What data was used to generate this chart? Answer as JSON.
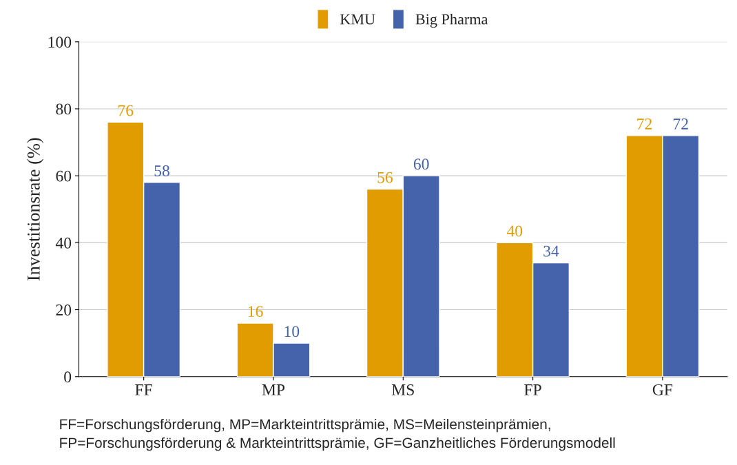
{
  "chart_data": {
    "type": "bar",
    "categories": [
      "FF",
      "MP",
      "MS",
      "FP",
      "GF"
    ],
    "series": [
      {
        "name": "KMU",
        "color": "#e09c00",
        "values": [
          76,
          16,
          56,
          40,
          72
        ]
      },
      {
        "name": "Big Pharma",
        "color": "#4463aa",
        "values": [
          58,
          10,
          60,
          34,
          72
        ]
      }
    ],
    "ylabel": "Investitionsrate (%)",
    "ylim": [
      0,
      100
    ],
    "yticks": [
      0,
      20,
      40,
      60,
      80,
      100
    ],
    "grid": "y",
    "legend": "top",
    "data_labels": true,
    "annotations": [
      "FF=Forschungsförderung, MP=Markteintrittsprämie, MS=Meilensteinprämien,",
      "FP=Forschungsförderung & Markteintrittsprämie, GF=Ganzheitliches Förderungsmodell"
    ]
  }
}
